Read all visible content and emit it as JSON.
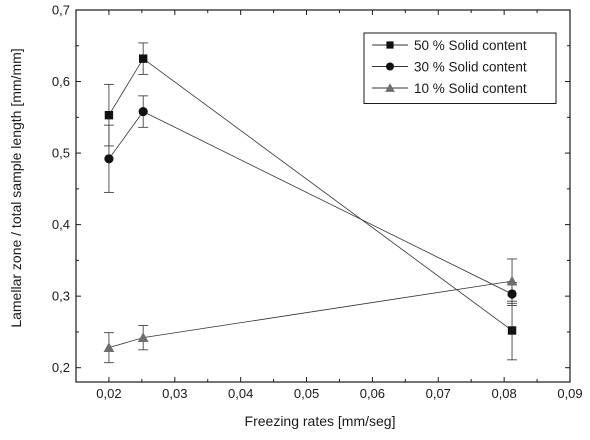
{
  "chart_data": {
    "type": "scatter",
    "xlabel": "Freezing rates [mm/seg]",
    "ylabel": "Lamellar zone / total sample length [mm/mm]",
    "xlim": [
      0.015,
      0.09
    ],
    "ylim": [
      0.18,
      0.7
    ],
    "xticks": [
      "0,02",
      "0,03",
      "0,04",
      "0,05",
      "0,06",
      "0,07",
      "0,08",
      "0,09"
    ],
    "xtick_values": [
      0.02,
      0.03,
      0.04,
      0.05,
      0.06,
      0.07,
      0.08,
      0.09
    ],
    "yticks": [
      "0,2",
      "0,3",
      "0,4",
      "0,5",
      "0,6",
      "0,7"
    ],
    "ytick_values": [
      0.2,
      0.3,
      0.4,
      0.5,
      0.6,
      0.7
    ],
    "grid": false,
    "legend_position": "top-right",
    "series": [
      {
        "name": "50 % Solid content",
        "marker": "square",
        "color": "#111111",
        "x": [
          0.02,
          0.0252,
          0.0812
        ],
        "y": [
          0.553,
          0.632,
          0.252
        ],
        "err": [
          0.043,
          0.022,
          0.041
        ]
      },
      {
        "name": "30 % Solid content",
        "marker": "circle",
        "color": "#111111",
        "x": [
          0.02,
          0.0252,
          0.0812
        ],
        "y": [
          0.492,
          0.558,
          0.303
        ],
        "err": [
          0.047,
          0.022,
          0.016
        ]
      },
      {
        "name": "10 % Solid content",
        "marker": "triangle",
        "color": "#6e6e6e",
        "x": [
          0.02,
          0.0252,
          0.0812
        ],
        "y": [
          0.228,
          0.242,
          0.321
        ],
        "err": [
          0.021,
          0.017,
          0.031
        ]
      }
    ]
  }
}
